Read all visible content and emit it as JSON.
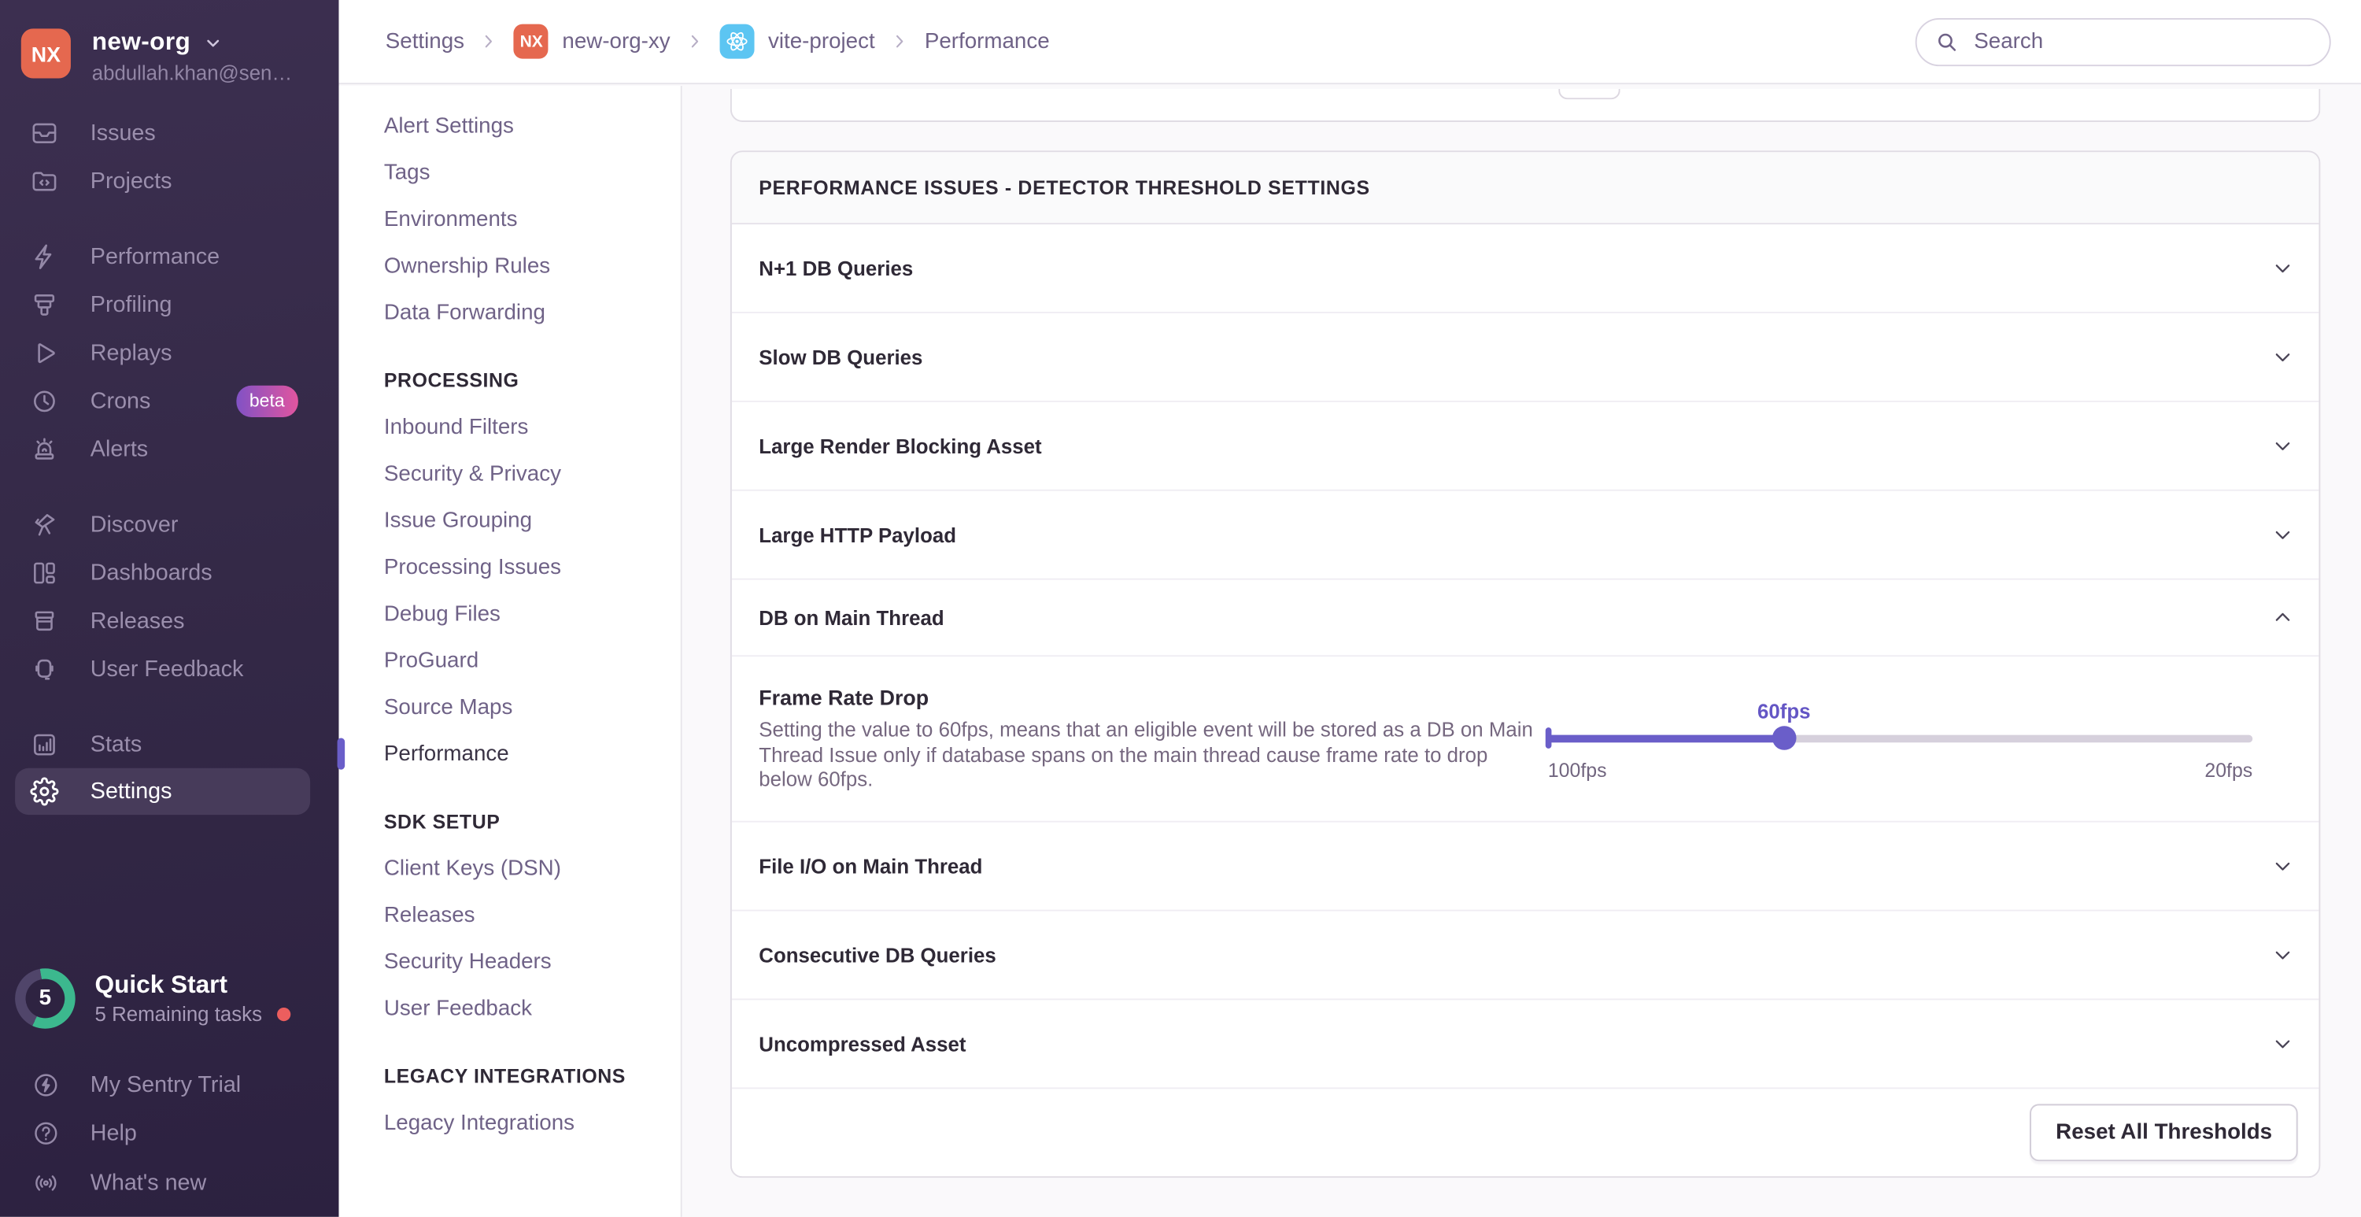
{
  "colors": {
    "accent_purple": "#6A5EC9",
    "org_avatar_orange": "#E5684F",
    "react_blue": "#5CC5F2",
    "progress_teal": "#3CB88E",
    "alert_red": "#EC5E5E",
    "beta_gradient_start": "#8152C5",
    "beta_gradient_end": "#E1559F"
  },
  "org": {
    "initials": "NX",
    "name": "new-org",
    "email": "abdullah.khan@sen…"
  },
  "sidebar": {
    "groups": [
      {
        "items": [
          {
            "label": "Issues",
            "icon": "issues-icon"
          },
          {
            "label": "Projects",
            "icon": "projects-icon"
          }
        ]
      },
      {
        "items": [
          {
            "label": "Performance",
            "icon": "performance-icon"
          },
          {
            "label": "Profiling",
            "icon": "profiling-icon"
          },
          {
            "label": "Replays",
            "icon": "replays-icon"
          },
          {
            "label": "Crons",
            "icon": "crons-icon",
            "badge": "beta"
          },
          {
            "label": "Alerts",
            "icon": "alerts-icon"
          }
        ]
      },
      {
        "items": [
          {
            "label": "Discover",
            "icon": "discover-icon"
          },
          {
            "label": "Dashboards",
            "icon": "dashboards-icon"
          },
          {
            "label": "Releases",
            "icon": "releases-icon"
          },
          {
            "label": "User Feedback",
            "icon": "user-feedback-icon"
          }
        ]
      },
      {
        "items": [
          {
            "label": "Stats",
            "icon": "stats-icon"
          },
          {
            "label": "Settings",
            "icon": "settings-icon",
            "active": true
          }
        ]
      }
    ]
  },
  "quick_start": {
    "count": "5",
    "title": "Quick Start",
    "subtitle": "5 Remaining tasks"
  },
  "sidebar_footer": {
    "items": [
      {
        "label": "My Sentry Trial",
        "icon": "trial-icon"
      },
      {
        "label": "Help",
        "icon": "help-icon"
      },
      {
        "label": "What's new",
        "icon": "whats-new-icon"
      }
    ]
  },
  "breadcrumb": {
    "items": [
      {
        "label": "Settings"
      },
      {
        "label": "new-org-xy",
        "icon": "org"
      },
      {
        "label": "vite-project",
        "icon": "react"
      },
      {
        "label": "Performance"
      }
    ]
  },
  "search": {
    "placeholder": "Search"
  },
  "settings_nav": {
    "groups": [
      {
        "heading": null,
        "items": [
          {
            "label": "Alert Settings"
          },
          {
            "label": "Tags"
          },
          {
            "label": "Environments"
          },
          {
            "label": "Ownership Rules"
          },
          {
            "label": "Data Forwarding"
          }
        ]
      },
      {
        "heading": "PROCESSING",
        "items": [
          {
            "label": "Inbound Filters"
          },
          {
            "label": "Security & Privacy"
          },
          {
            "label": "Issue Grouping"
          },
          {
            "label": "Processing Issues"
          },
          {
            "label": "Debug Files"
          },
          {
            "label": "ProGuard"
          },
          {
            "label": "Source Maps"
          },
          {
            "label": "Performance",
            "active": true
          }
        ]
      },
      {
        "heading": "SDK SETUP",
        "items": [
          {
            "label": "Client Keys (DSN)"
          },
          {
            "label": "Releases"
          },
          {
            "label": "Security Headers"
          },
          {
            "label": "User Feedback"
          }
        ]
      },
      {
        "heading": "LEGACY INTEGRATIONS",
        "items": [
          {
            "label": "Legacy Integrations"
          }
        ]
      }
    ]
  },
  "panel": {
    "title": "PERFORMANCE ISSUES - DETECTOR THRESHOLD SETTINGS",
    "rows": [
      {
        "label": "N+1 DB Queries",
        "state": "collapsed"
      },
      {
        "label": "Slow DB Queries",
        "state": "collapsed"
      },
      {
        "label": "Large Render Blocking Asset",
        "state": "collapsed"
      },
      {
        "label": "Large HTTP Payload",
        "state": "collapsed"
      },
      {
        "label": "DB on Main Thread",
        "state": "expanded",
        "detail": {
          "label": "Frame Rate Drop",
          "description": "Setting the value to 60fps, means that an eligible event will be stored as a DB on Main Thread Issue only if database spans on the main thread cause frame rate to drop below 60fps.",
          "slider": {
            "value_label": "60fps",
            "min_label": "100fps",
            "max_label": "20fps",
            "percent": 33.5
          }
        }
      },
      {
        "label": "File I/O on Main Thread",
        "state": "collapsed"
      },
      {
        "label": "Consecutive DB Queries",
        "state": "collapsed"
      },
      {
        "label": "Uncompressed Asset",
        "state": "collapsed"
      }
    ],
    "footer": {
      "reset_button": "Reset All Thresholds"
    }
  }
}
